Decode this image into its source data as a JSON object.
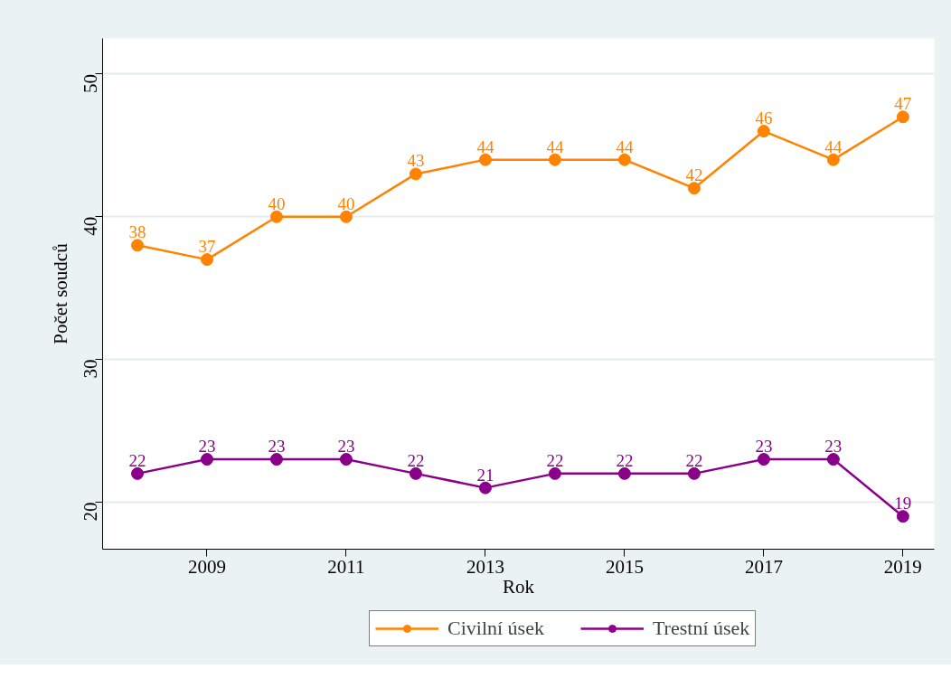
{
  "chart_data": {
    "type": "line",
    "xlabel": "Rok",
    "ylabel": "Počet soudců",
    "x": [
      2008,
      2009,
      2010,
      2011,
      2012,
      2013,
      2014,
      2015,
      2016,
      2017,
      2018,
      2019
    ],
    "series": [
      {
        "name": "Civilní úsek",
        "color": "#ff8200",
        "values": [
          38,
          37,
          40,
          40,
          43,
          44,
          44,
          44,
          42,
          46,
          44,
          47
        ]
      },
      {
        "name": "Trestní úsek",
        "color": "#8b008b",
        "values": [
          22,
          23,
          23,
          23,
          22,
          21,
          22,
          22,
          22,
          23,
          23,
          19
        ]
      }
    ],
    "xlim": [
      2007.5,
      2019.45
    ],
    "xticks": [
      2009,
      2011,
      2013,
      2015,
      2017,
      2019
    ],
    "ylim": [
      16.7,
      52.5
    ],
    "yticks": [
      20,
      30,
      40,
      50
    ],
    "grid": "y",
    "legend": "bottom",
    "marker": "circle",
    "line_style": "solid",
    "data_labels": true
  }
}
